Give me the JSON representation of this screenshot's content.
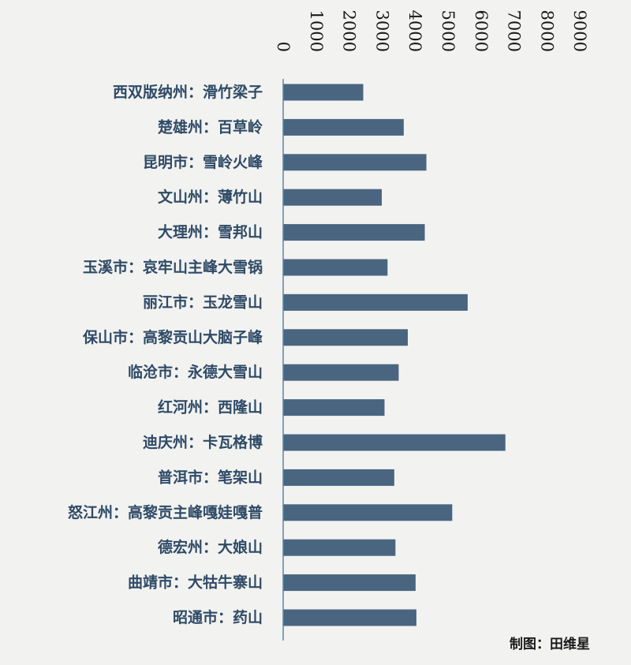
{
  "chart_data": {
    "type": "bar",
    "orientation": "horizontal",
    "categories": [
      "西双版纳州：滑竹梁子",
      "楚雄州：百草岭",
      "昆明市：雪岭火峰",
      "文山州：薄竹山",
      "大理州：雪邦山",
      "玉溪市：哀牢山主峰大雪锅",
      "丽江市：玉龙雪山",
      "保山市：高黎贡山大脑子峰",
      "临沧市：永德大雪山",
      "红河州：西隆山",
      "迪庆州：卡瓦格博",
      "普洱市：笔架山",
      "怒江州：高黎贡主峰嘎娃嘎普",
      "德宏州：大娘山",
      "曲靖市：大牯牛寨山",
      "昭通市：药山"
    ],
    "values": [
      2429,
      3657,
      4344,
      2991,
      4295,
      3166,
      5596,
      3780,
      3504,
      3074,
      6740,
      3370,
      5128,
      3406,
      4017,
      4041
    ],
    "xlim": [
      0,
      9000
    ],
    "ticks": [
      "0",
      "1000",
      "2000",
      "3000",
      "4000",
      "5000",
      "6000",
      "7000",
      "8000",
      "9000"
    ],
    "tick_values": [
      0,
      1000,
      2000,
      3000,
      4000,
      5000,
      6000,
      7000,
      8000,
      9000
    ],
    "title": "",
    "xlabel": "",
    "ylabel": "",
    "grid": false,
    "axis_position": "top",
    "bar_color": "#4a6580",
    "label_color": "#2e4a66",
    "axis_line_color": "#5a86a8",
    "background": "#f2f2f0"
  },
  "credit": "制图：田维星"
}
